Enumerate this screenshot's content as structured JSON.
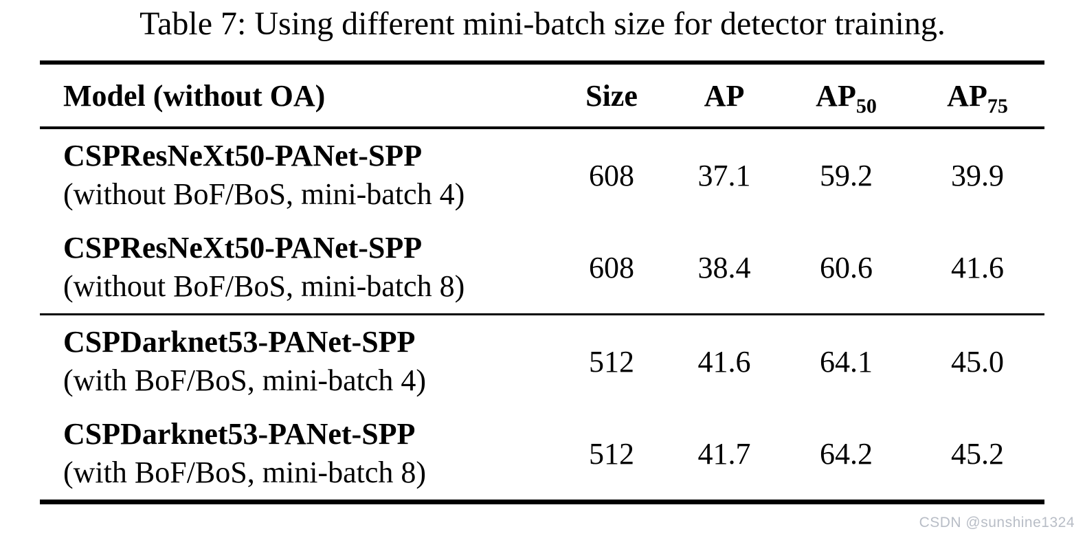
{
  "title": "Table 7: Using different mini-batch size for detector training.",
  "watermark": "CSDN @sunshine1324",
  "colors": {
    "background": "#ffffff",
    "text": "#000000",
    "rule": "#000000",
    "watermark_gray": "#b8bdc6"
  },
  "table": {
    "headers": {
      "model": "Model (without OA)",
      "size": "Size",
      "ap": "AP",
      "ap50": {
        "base": "AP",
        "sub": "50"
      },
      "ap75": {
        "base": "AP",
        "sub": "75"
      }
    },
    "groups": [
      {
        "rows": [
          {
            "model_name": "CSPResNeXt50-PANet-SPP",
            "model_detail": "(without BoF/BoS, mini-batch 4)",
            "size": "608",
            "ap": "37.1",
            "ap50": "59.2",
            "ap75": "39.9"
          },
          {
            "model_name": "CSPResNeXt50-PANet-SPP",
            "model_detail": "(without BoF/BoS, mini-batch 8)",
            "size": "608",
            "ap": "38.4",
            "ap50": "60.6",
            "ap75": "41.6"
          }
        ]
      },
      {
        "rows": [
          {
            "model_name": "CSPDarknet53-PANet-SPP",
            "model_detail": "(with BoF/BoS, mini-batch 4)",
            "size": "512",
            "ap": "41.6",
            "ap50": "64.1",
            "ap75": "45.0"
          },
          {
            "model_name": "CSPDarknet53-PANet-SPP",
            "model_detail": "(with BoF/BoS, mini-batch 8)",
            "size": "512",
            "ap": "41.7",
            "ap50": "64.2",
            "ap75": "45.2"
          }
        ]
      }
    ]
  }
}
